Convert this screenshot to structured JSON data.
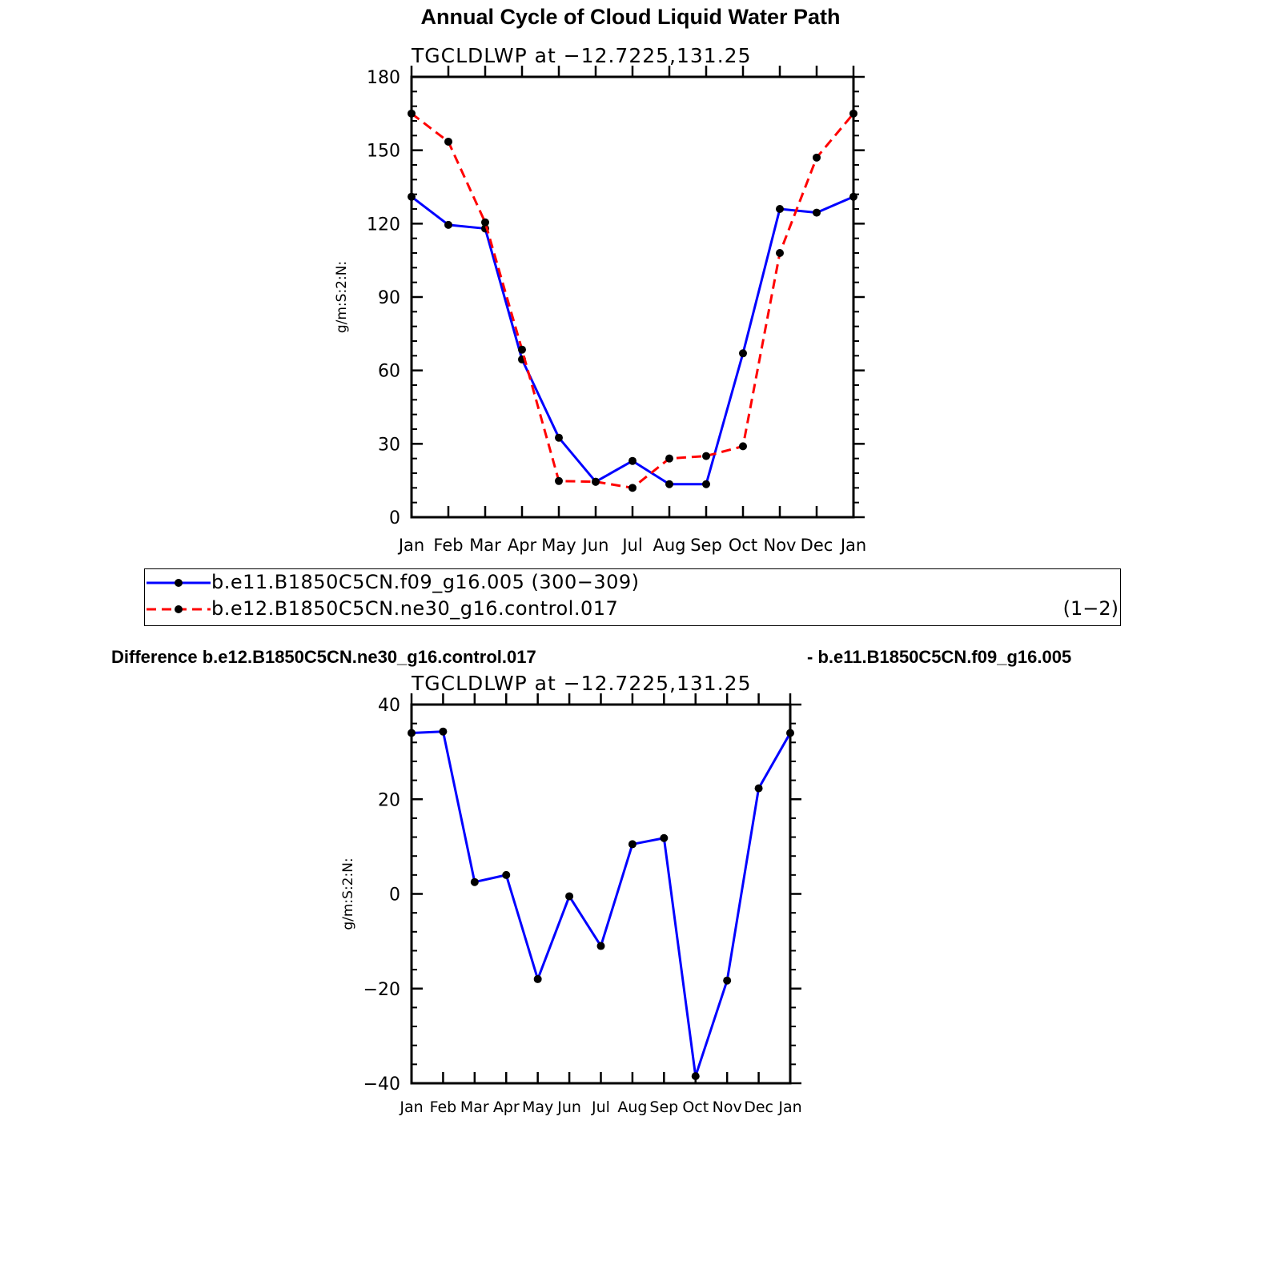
{
  "main_title": "Annual Cycle of Cloud Liquid Water Path",
  "legend": {
    "series1_label": "b.e11.B1850C5CN.f09_g16.005 (300−309)",
    "series2_label": "b.e12.B1850C5CN.ne30_g16.control.017",
    "suffix": "(1−2)"
  },
  "diff_title": {
    "left": "Difference b.e12.B1850C5CN.ne30_g16.control.017",
    "right": "- b.e11.B1850C5CN.f09_g16.005"
  },
  "colors": {
    "series1": "#0000ff",
    "series2": "#ff0000",
    "marker": "#000000",
    "axis": "#000000"
  },
  "chart_data": [
    {
      "type": "line",
      "subtitle": "TGCLDLWP  at  −12.7225,131.25",
      "ylabel": "g/m:S:2:N:",
      "xlabel": "",
      "categories": [
        "Jan",
        "Feb",
        "Mar",
        "Apr",
        "May",
        "Jun",
        "Jul",
        "Aug",
        "Sep",
        "Oct",
        "Nov",
        "Dec",
        "Jan"
      ],
      "ylim": [
        0,
        180
      ],
      "yticks": [
        0,
        30,
        60,
        90,
        120,
        150,
        180
      ],
      "ytick_labels": [
        "0",
        "30",
        "60",
        "90",
        "120",
        "150",
        "180"
      ],
      "grid": false,
      "series": [
        {
          "name": "b.e11.B1850C5CN.f09_g16.005 (300−309)",
          "style": "solid",
          "color": "#0000ff",
          "values": [
            131,
            119.5,
            118,
            64.5,
            32.5,
            14.5,
            23,
            13.5,
            13.5,
            67,
            126,
            124.5,
            131
          ]
        },
        {
          "name": "b.e12.B1850C5CN.ne30_g16.control.017",
          "style": "dashed",
          "color": "#ff0000",
          "values": [
            165,
            153.5,
            120.5,
            68.5,
            14.8,
            14.5,
            12,
            24,
            25,
            29,
            108,
            147,
            165
          ]
        }
      ]
    },
    {
      "type": "line",
      "subtitle": "TGCLDLWP  at  −12.7225,131.25",
      "ylabel": "g/m:S:2:N:",
      "xlabel": "",
      "categories": [
        "Jan",
        "Feb",
        "Mar",
        "Apr",
        "May",
        "Jun",
        "Jul",
        "Aug",
        "Sep",
        "Oct",
        "Nov",
        "Dec",
        "Jan"
      ],
      "ylim": [
        -40,
        40
      ],
      "yticks": [
        -40,
        -20,
        0,
        20,
        40
      ],
      "ytick_labels": [
        "−40",
        "−20",
        "0",
        "20",
        "40"
      ],
      "grid": false,
      "series": [
        {
          "name": "",
          "style": "solid",
          "color": "#0000ff",
          "values": [
            34,
            34.3,
            2.5,
            4,
            -18,
            -0.5,
            -11,
            10.5,
            11.8,
            -38.5,
            -18.3,
            22.3,
            34
          ]
        }
      ]
    }
  ]
}
